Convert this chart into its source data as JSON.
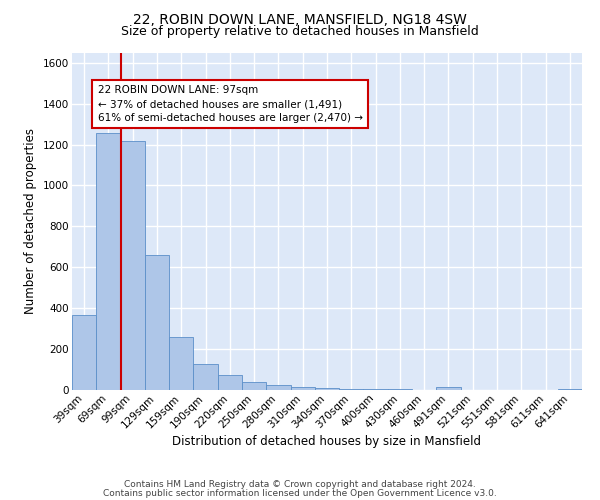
{
  "title": "22, ROBIN DOWN LANE, MANSFIELD, NG18 4SW",
  "subtitle": "Size of property relative to detached houses in Mansfield",
  "xlabel": "Distribution of detached houses by size in Mansfield",
  "ylabel": "Number of detached properties",
  "categories": [
    "39sqm",
    "69sqm",
    "99sqm",
    "129sqm",
    "159sqm",
    "190sqm",
    "220sqm",
    "250sqm",
    "280sqm",
    "310sqm",
    "340sqm",
    "370sqm",
    "400sqm",
    "430sqm",
    "460sqm",
    "491sqm",
    "521sqm",
    "551sqm",
    "581sqm",
    "611sqm",
    "641sqm"
  ],
  "values": [
    365,
    1255,
    1215,
    660,
    260,
    125,
    75,
    40,
    25,
    15,
    10,
    7,
    5,
    3,
    0,
    15,
    0,
    0,
    0,
    0,
    5
  ],
  "bar_color": "#aec6e8",
  "bar_edge_color": "#5b8fc9",
  "bg_color": "#dde8f8",
  "grid_color": "#ffffff",
  "vline_color": "#cc0000",
  "annotation_text": "22 ROBIN DOWN LANE: 97sqm\n← 37% of detached houses are smaller (1,491)\n61% of semi-detached houses are larger (2,470) →",
  "annotation_box_color": "#ffffff",
  "annotation_box_edge_color": "#cc0000",
  "footer_line1": "Contains HM Land Registry data © Crown copyright and database right 2024.",
  "footer_line2": "Contains public sector information licensed under the Open Government Licence v3.0.",
  "ylim": [
    0,
    1650
  ],
  "title_fontsize": 10,
  "subtitle_fontsize": 9,
  "axis_label_fontsize": 8.5,
  "tick_fontsize": 7.5,
  "annotation_fontsize": 7.5,
  "footer_fontsize": 6.5
}
